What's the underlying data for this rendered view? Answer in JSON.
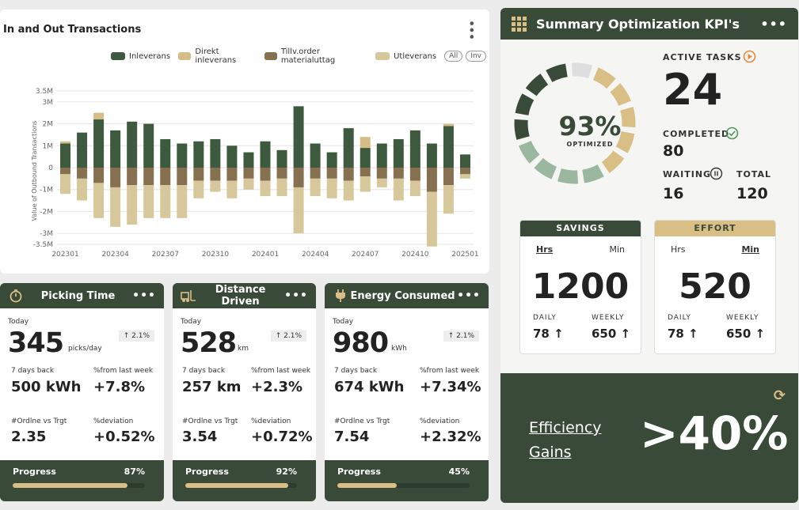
{
  "transactions": {
    "title": "In and Out Transactions",
    "legend": [
      {
        "label": "Inleverans",
        "color": "#3d5a3f"
      },
      {
        "label": "Direkt inleverans",
        "color": "#d6bd85"
      },
      {
        "label": "Tillv.order materialuttag",
        "color": "#86704f"
      },
      {
        "label": "Utleverans",
        "color": "#d6c89a"
      }
    ],
    "buttons": [
      "All",
      "Inv"
    ],
    "ylabel": "Value of Outbound Transactions"
  },
  "chart_data": {
    "type": "bar",
    "x_ticks": [
      "202301",
      "202304",
      "202307",
      "202310",
      "202401",
      "202404",
      "202407",
      "202410",
      "202501"
    ],
    "y_ticks": [
      "3.5M",
      "3M",
      "2M",
      "1M",
      "0",
      "-1M",
      "-2M",
      "-3M",
      "-3.5M"
    ],
    "ylim": [
      -3.5,
      3.5
    ],
    "y_units": "M",
    "series": [
      {
        "name": "Inleverans",
        "values": [
          1.1,
          1.6,
          2.2,
          1.7,
          2.1,
          2.0,
          1.3,
          1.1,
          1.2,
          1.3,
          1.0,
          0.7,
          1.2,
          0.8,
          2.8,
          1.1,
          0.7,
          1.8,
          0.9,
          1.1,
          1.3,
          1.7,
          1.1,
          1.9,
          0.6
        ]
      },
      {
        "name": "Direkt inleverans",
        "values": [
          0.1,
          0.0,
          0.3,
          0.0,
          0.0,
          0.0,
          0.0,
          0.0,
          0.0,
          0.0,
          0.0,
          0.0,
          0.0,
          0.0,
          0.0,
          0.0,
          0.0,
          0.0,
          0.5,
          0.0,
          0.0,
          0.0,
          0.0,
          0.1,
          0.0
        ]
      },
      {
        "name": "Tillv.order materialuttag",
        "values": [
          -0.3,
          -0.5,
          -0.7,
          -0.9,
          -0.8,
          -0.8,
          -0.8,
          -0.8,
          -0.6,
          -0.6,
          -0.6,
          -0.5,
          -0.6,
          -0.5,
          -0.9,
          -0.5,
          -0.5,
          -0.6,
          -0.4,
          -0.5,
          -0.5,
          -0.6,
          -1.1,
          -0.8,
          -0.3
        ]
      },
      {
        "name": "Utleverans",
        "values": [
          -0.9,
          -1.0,
          -1.6,
          -1.8,
          -1.8,
          -1.5,
          -1.5,
          -1.5,
          -0.8,
          -0.5,
          -0.8,
          -0.5,
          -0.7,
          -0.8,
          -2.1,
          -0.8,
          -0.9,
          -0.9,
          -0.7,
          -0.4,
          -1.0,
          -0.7,
          -2.5,
          -1.3,
          -0.2
        ]
      }
    ]
  },
  "kpis": [
    {
      "name": "Picking Time",
      "icon": "timer-icon",
      "today_label": "Today",
      "value": "345",
      "unit": "picks/day",
      "badge": "2.1%",
      "l1": "7 days back",
      "v1": "500 kWh",
      "l2": "%from last week",
      "v2": "+7.8%",
      "l3": "#Ordlne vs Trgt",
      "v3": "2.35",
      "l4": "%deviation",
      "v4": "+0.52%",
      "progress_label": "Progress",
      "progress_text": "87%",
      "progress": 0.87
    },
    {
      "name": "Distance Driven",
      "icon": "forklift-icon",
      "today_label": "Today",
      "value": "528",
      "unit": "km",
      "badge": "2.1%",
      "l1": "7 days back",
      "v1": "257 km",
      "l2": "%from last week",
      "v2": "+2.3%",
      "l3": "#Ordlne vs Trgt",
      "v3": "3.54",
      "l4": "%deviation",
      "v4": "+0.72%",
      "progress_label": "Progress",
      "progress_text": "92%",
      "progress": 0.92
    },
    {
      "name": "Energy Consumed",
      "icon": "plug-icon",
      "today_label": "Today",
      "value": "980",
      "unit": "kWh",
      "badge": "2.1%",
      "l1": "7 days back",
      "v1": "674 kWh",
      "l2": "%from last week",
      "v2": "+7.34%",
      "l3": "#Ordlne vs Trgt",
      "v3": "7.54",
      "l4": "%deviation",
      "v4": "+2.32%",
      "progress_label": "Progress",
      "progress_text": "45%",
      "progress": 0.45
    }
  ],
  "summary": {
    "title": "Summary Optimization KPI's",
    "optimized_value": "93%",
    "optimized_label": "OPTIMIZED",
    "active_tasks_label": "ACTIVE TASKS",
    "active_tasks": "24",
    "completed_label": "COMPLETED",
    "completed": "80",
    "waiting_label": "WAITING",
    "waiting": "16",
    "total_label": "TOTAL",
    "total": "120",
    "savings": {
      "title": "SAVINGS",
      "hrs": "Hrs",
      "min": "Min",
      "value": "1200",
      "daily_label": "DAILY",
      "daily": "78",
      "weekly_label": "WEEKLY",
      "weekly": "650"
    },
    "effort": {
      "title": "EFFORT",
      "hrs": "Hrs",
      "min": "Min",
      "value": "520",
      "daily_label": "DAILY",
      "daily": "78",
      "weekly_label": "WEEKLY",
      "weekly": "650"
    },
    "efficiency_line1": "Efficiency",
    "efficiency_line2": "Gains",
    "efficiency_value": ">40%"
  },
  "colors": {
    "dark_green": "#3a4a39",
    "gold": "#d9be86",
    "accent_orange": "#e8873a",
    "check_green": "#4c9a5a"
  }
}
